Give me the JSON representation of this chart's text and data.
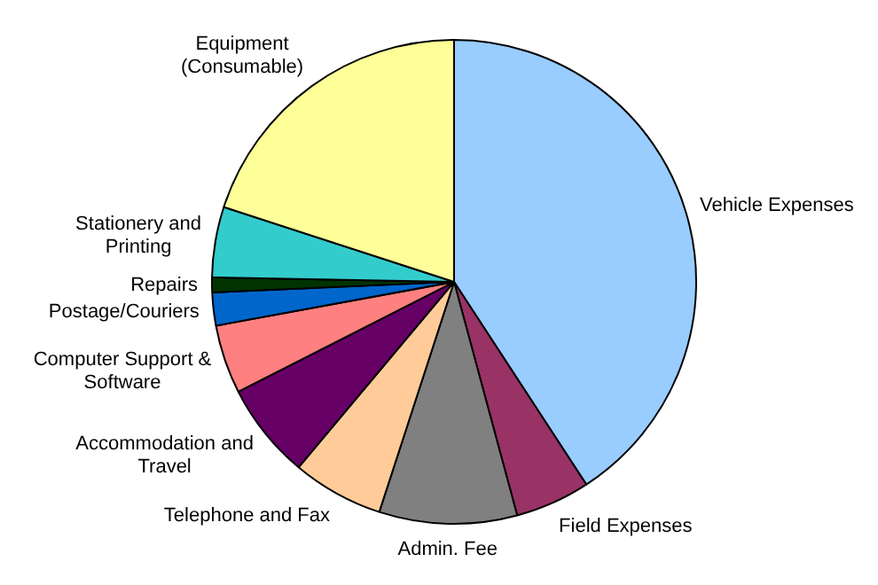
{
  "chart_data": {
    "type": "pie",
    "categories": [
      "Vehicle Expenses",
      "Field Expenses",
      "Admin. Fee",
      "Telephone and Fax",
      "Accommodation and Travel",
      "Computer Support & Software",
      "Postage/Couriers",
      "Repairs",
      "Stationery and Printing",
      "Equipment (Consumable)"
    ],
    "values": [
      40.8,
      5.0,
      9.2,
      6.1,
      6.4,
      4.6,
      2.2,
      1.0,
      4.7,
      20.0
    ],
    "colors": [
      "#99ccff",
      "#993366",
      "#808080",
      "#ffcc99",
      "#660066",
      "#ff8080",
      "#0066cc",
      "#003300",
      "#33cccc",
      "#ffff99"
    ],
    "legend": false
  }
}
